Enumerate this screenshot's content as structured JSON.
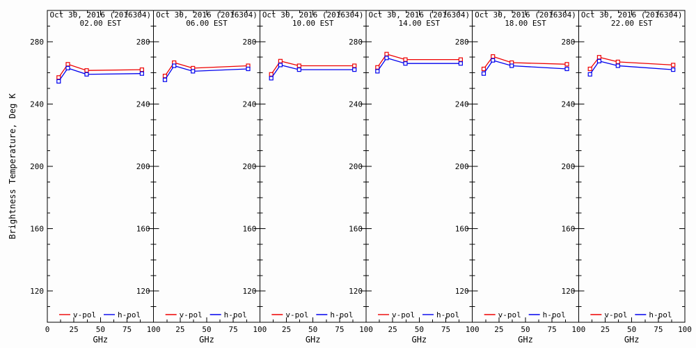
{
  "figure": {
    "background": "#fdfdfd",
    "axis_color": "#000000",
    "text_color": "#000000"
  },
  "chart_data": {
    "type": "line",
    "x": [
      10.7,
      19.35,
      37.0,
      89.0
    ],
    "xlabel": "GHz",
    "ylabel": "Brightness Temperature, Deg K",
    "xlim": [
      0,
      100
    ],
    "ylim": [
      100,
      300
    ],
    "x_major_ticks": [
      0,
      25,
      50,
      75,
      100
    ],
    "x_minor_ticks": [
      12.5,
      37.5,
      62.5,
      87.5
    ],
    "y_major_ticks": [
      120,
      160,
      200,
      240,
      280
    ],
    "y_minor_step": 10,
    "grid": false,
    "legend_position": "bottom-inside-each-panel",
    "legend": [
      {
        "label": "v-pol",
        "color": "#ee0000"
      },
      {
        "label": "h-pol",
        "color": "#0000ee"
      }
    ],
    "panels": [
      {
        "title_line1": "Oct 30, 2016 (2016304)",
        "title_line2": "02.00 EST",
        "series": [
          {
            "name": "v-pol",
            "color": "#ee0000",
            "values": [
              257.0,
              265.5,
              261.5,
              262.0
            ]
          },
          {
            "name": "h-pol",
            "color": "#0000ee",
            "values": [
              254.5,
              263.0,
              259.0,
              259.5
            ]
          }
        ]
      },
      {
        "title_line1": "Oct 30, 2016 (2016304)",
        "title_line2": "06.00 EST",
        "series": [
          {
            "name": "v-pol",
            "color": "#ee0000",
            "values": [
              258.0,
              266.5,
              263.0,
              264.5
            ]
          },
          {
            "name": "h-pol",
            "color": "#0000ee",
            "values": [
              255.5,
              264.5,
              261.0,
              262.5
            ]
          }
        ]
      },
      {
        "title_line1": "Oct 30, 2016 (2016304)",
        "title_line2": "10.00 EST",
        "series": [
          {
            "name": "v-pol",
            "color": "#ee0000",
            "values": [
              259.0,
              267.5,
              264.5,
              264.5
            ]
          },
          {
            "name": "h-pol",
            "color": "#0000ee",
            "values": [
              256.5,
              265.0,
              262.0,
              262.0
            ]
          }
        ]
      },
      {
        "title_line1": "Oct 30, 2016 (2016304)",
        "title_line2": "14.00 EST",
        "series": [
          {
            "name": "v-pol",
            "color": "#ee0000",
            "values": [
              263.5,
              272.0,
              268.5,
              268.5
            ]
          },
          {
            "name": "h-pol",
            "color": "#0000ee",
            "values": [
              261.0,
              269.5,
              266.0,
              266.0
            ]
          }
        ]
      },
      {
        "title_line1": "Oct 30, 2016 (2016304)",
        "title_line2": "18.00 EST",
        "series": [
          {
            "name": "v-pol",
            "color": "#ee0000",
            "values": [
              262.5,
              270.5,
              266.5,
              265.5
            ]
          },
          {
            "name": "h-pol",
            "color": "#0000ee",
            "values": [
              259.5,
              268.0,
              264.5,
              262.5
            ]
          }
        ]
      },
      {
        "title_line1": "Oct 30, 2016 (2016304)",
        "title_line2": "22.00 EST",
        "series": [
          {
            "name": "v-pol",
            "color": "#ee0000",
            "values": [
              262.5,
              270.0,
              267.0,
              265.0
            ]
          },
          {
            "name": "h-pol",
            "color": "#0000ee",
            "values": [
              259.0,
              267.5,
              264.5,
              262.0
            ]
          }
        ]
      }
    ]
  }
}
